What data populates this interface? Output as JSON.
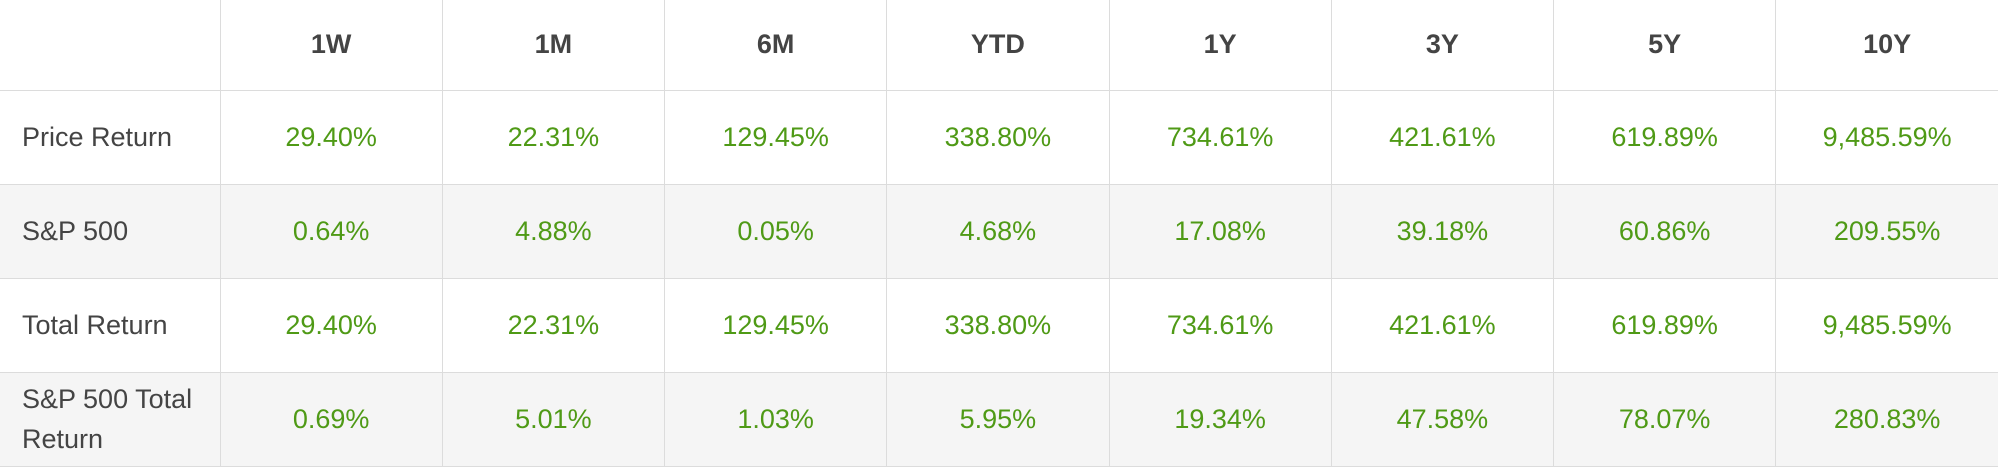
{
  "table": {
    "columns": [
      "1W",
      "1M",
      "6M",
      "YTD",
      "1Y",
      "3Y",
      "5Y",
      "10Y"
    ],
    "rows": [
      {
        "label": "Price Return",
        "values": [
          "29.40%",
          "22.31%",
          "129.45%",
          "338.80%",
          "734.61%",
          "421.61%",
          "619.89%",
          "9,485.59%"
        ]
      },
      {
        "label": "S&P 500",
        "values": [
          "0.64%",
          "4.88%",
          "0.05%",
          "4.68%",
          "17.08%",
          "39.18%",
          "60.86%",
          "209.55%"
        ]
      },
      {
        "label": "Total Return",
        "values": [
          "29.40%",
          "22.31%",
          "129.45%",
          "338.80%",
          "734.61%",
          "421.61%",
          "619.89%",
          "9,485.59%"
        ]
      },
      {
        "label": "S&P 500 Total Return",
        "values": [
          "0.69%",
          "5.01%",
          "1.03%",
          "5.95%",
          "19.34%",
          "47.58%",
          "78.07%",
          "280.83%"
        ]
      }
    ]
  }
}
